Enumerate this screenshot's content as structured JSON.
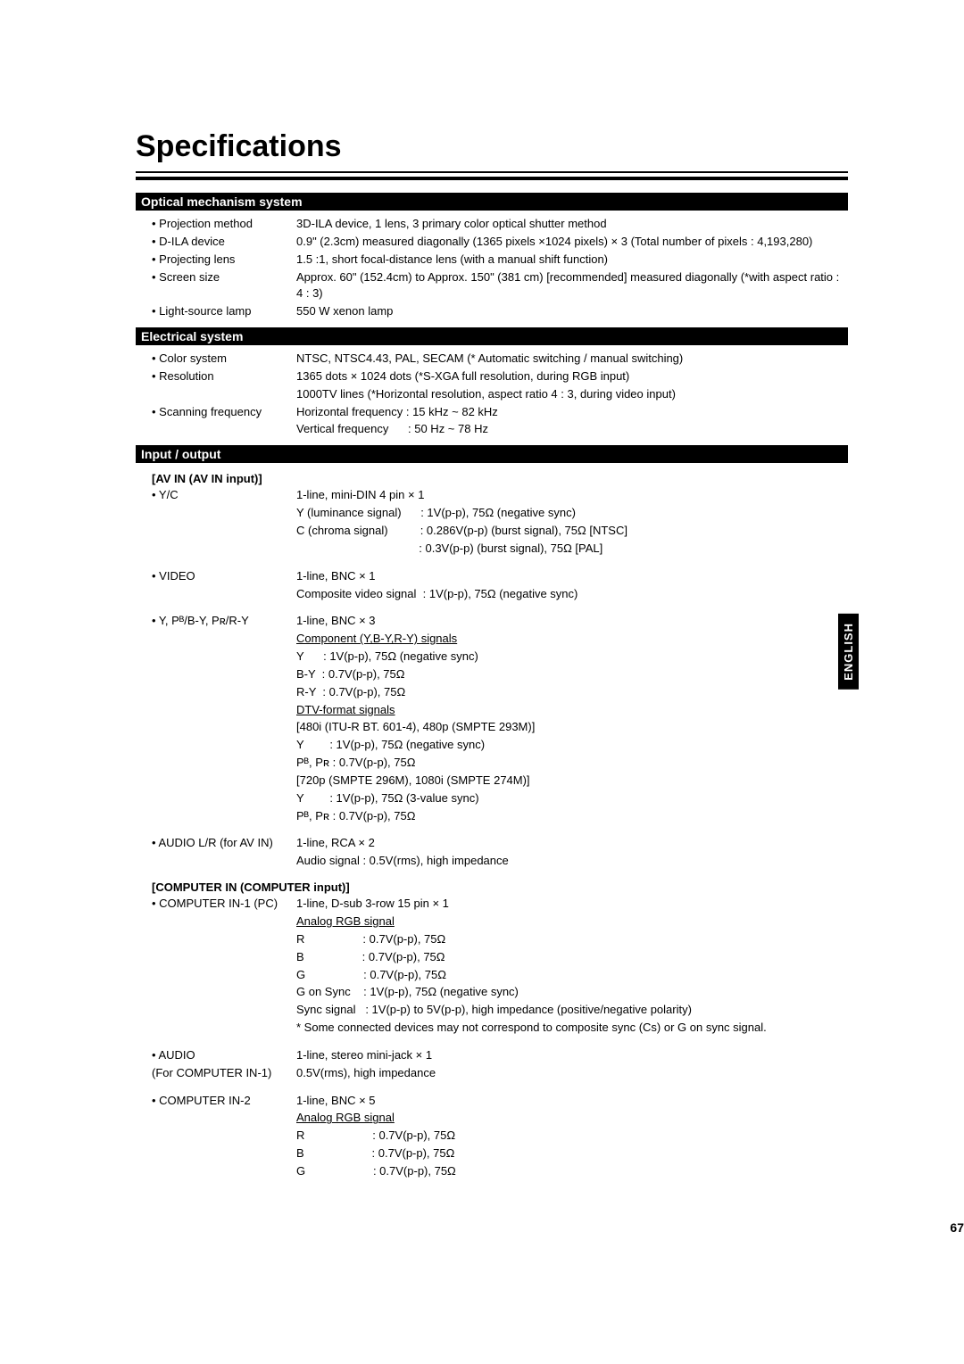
{
  "page": {
    "title": "Specifications",
    "side_tab": "ENGLISH",
    "page_number": "67"
  },
  "sections": {
    "optical": {
      "header": "Optical mechanism system",
      "projection_method_label": "• Projection method",
      "projection_method_value": "3D-ILA device, 1 lens, 3 primary color optical shutter method",
      "dila_label": "• D-ILA device",
      "dila_value": "0.9\" (2.3cm) measured diagonally (1365 pixels ×1024 pixels) × 3  (Total number of pixels : 4,193,280)",
      "lens_label": "• Projecting lens",
      "lens_value": "1.5 :1, short focal-distance lens (with a manual shift function)",
      "screen_label": "• Screen size",
      "screen_value": "Approx. 60\" (152.4cm) to Approx. 150\" (381 cm) [recommended] measured diagonally (*with aspect ratio : 4 : 3)",
      "lamp_label": "• Light-source lamp",
      "lamp_value": "550 W xenon lamp"
    },
    "electrical": {
      "header": "Electrical system",
      "color_label": "• Color system",
      "color_value": "NTSC, NTSC4.43, PAL, SECAM  (* Automatic switching / manual switching)",
      "res_label": "• Resolution",
      "res_value1": "1365 dots × 1024 dots  (*S-XGA full resolution, during RGB input)",
      "res_value2": "1000TV lines  (*Horizontal resolution, aspect ratio 4 : 3, during video input)",
      "scan_label": "• Scanning frequency",
      "scan_value1": "Horizontal frequency : 15 kHz ~ 82 kHz",
      "scan_value2": "Vertical frequency      : 50 Hz ~ 78 Hz"
    },
    "io": {
      "header": "Input / output",
      "avin_header": "[AV IN  (AV IN input)]",
      "yc_label": "• Y/C",
      "yc_line": "1-line, mini-DIN 4 pin × 1",
      "yc_lum": "Y (luminance signal)      : 1V(p-p), 75Ω (negative sync)",
      "yc_chr1": "C (chroma signal)          : 0.286V(p-p) (burst signal), 75Ω [NTSC]",
      "yc_chr2": "                                      : 0.3V(p-p) (burst signal), 75Ω [PAL]",
      "video_label": "• VIDEO",
      "video_line": "1-line, BNC × 1",
      "video_sig": "Composite video signal  : 1V(p-p), 75Ω (negative sync)",
      "comp_label": "• Y, Pᴮ/B-Y, Pʀ/R-Y",
      "comp_line": "1-line, BNC × 3",
      "comp_u1": "Component (Y,B-Y,R-Y) signals",
      "comp_y": "Y      : 1V(p-p), 75Ω (negative sync)",
      "comp_by": "B-Y  : 0.7V(p-p), 75Ω",
      "comp_ry": "R-Y  : 0.7V(p-p), 75Ω",
      "dtv_u": "DTV-format signals",
      "dtv_480": "[480i (ITU-R BT. 601-4), 480p (SMPTE 293M)]",
      "dtv_y1": "Y        : 1V(p-p), 75Ω (negative sync)",
      "dtv_pb1": "Pᴮ, Pʀ : 0.7V(p-p), 75Ω",
      "dtv_720": "[720p (SMPTE 296M), 1080i (SMPTE 274M)]",
      "dtv_y2": "Y        : 1V(p-p), 75Ω (3-value sync)",
      "dtv_pb2": "Pᴮ, Pʀ : 0.7V(p-p), 75Ω",
      "audio_label": "• AUDIO L/R (for AV IN)",
      "audio_line": "1-line, RCA × 2",
      "audio_sig": "Audio signal : 0.5V(rms), high impedance",
      "compin_header": "[COMPUTER IN  (COMPUTER input)]",
      "ci1_label": "• COMPUTER IN-1 (PC)",
      "ci1_line": "1-line, D-sub 3-row 15 pin × 1",
      "ci1_u": "Analog RGB signal",
      "ci1_r": "R                  : 0.7V(p-p), 75Ω",
      "ci1_b": "B                  : 0.7V(p-p), 75Ω",
      "ci1_g": "G                  : 0.7V(p-p), 75Ω",
      "ci1_gos": "G on Sync    : 1V(p-p), 75Ω (negative sync)",
      "ci1_sync": "Sync signal   : 1V(p-p) to 5V(p-p), high impedance (positive/negative polarity)",
      "ci1_note": "* Some connected devices may not correspond to composite sync (Cs) or G on sync signal.",
      "ci1a_label1": "• AUDIO",
      "ci1a_label2": "(For COMPUTER IN-1)",
      "ci1a_line": "1-line, stereo mini-jack × 1",
      "ci1a_sig": "0.5V(rms), high impedance",
      "ci2_label": "• COMPUTER IN-2",
      "ci2_line": "1-line, BNC × 5",
      "ci2_u": "Analog RGB signal",
      "ci2_r": "R                     : 0.7V(p-p), 75Ω",
      "ci2_b": "B                     : 0.7V(p-p), 75Ω",
      "ci2_g": "G                     : 0.7V(p-p), 75Ω"
    }
  }
}
